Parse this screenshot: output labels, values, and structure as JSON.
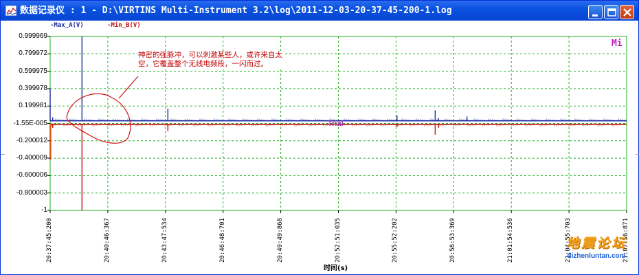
{
  "window": {
    "title": "数据记录仪 : 1 - D:\\VIRTINS Multi-Instrument 3.2\\log\\2011-12-03-20-37-45-200-1.log",
    "buttons": [
      "minimize",
      "maximize",
      "close"
    ]
  },
  "legend": [
    {
      "label": "-Max_A(V)",
      "color": "#1a2aa0"
    },
    {
      "label": "-Min_B(V)",
      "color": "#c81010"
    }
  ],
  "plot": {
    "corner_tag": "Mi",
    "trial_tag": "Trial",
    "annotation": "神密的强脉冲，可以刺激某些人，或许来自太空，它覆盖整个无线电频段，一闪而过。"
  },
  "chart_data": {
    "type": "line",
    "ylim": [
      -1,
      1
    ],
    "y_tick_labels": [
      "0.999969",
      "0.799972",
      "0.599975",
      "0.399978",
      "0.199981",
      "-1.55E-005",
      "-0.200012",
      "-0.400009",
      "-0.600006",
      "-0.800003",
      "-1"
    ],
    "y_ticks": [
      0.999969,
      0.799972,
      0.599975,
      0.399978,
      0.199981,
      -1.55e-05,
      -0.200012,
      -0.400009,
      -0.600006,
      -0.800003,
      -1
    ],
    "x_tick_labels": [
      "20:37:45:200",
      "20:40:46:367",
      "20:43:47:534",
      "20:46:48:701",
      "20:49:49:868",
      "20:52:51:035",
      "20:55:52:202",
      "20:58:53:369",
      "21:01:54:536",
      "21:04:55:703",
      "21:07:56:871"
    ],
    "x_range_s": [
      0,
      1811.671
    ],
    "xlabel": "时间(s)",
    "grid": true,
    "series": [
      {
        "name": "Max_A(V)",
        "color": "#1a2aa0",
        "baseline": 0.03,
        "spikes": [
          [
            0,
            0.4
          ],
          [
            8,
            0.07
          ],
          [
            100,
            1.0
          ],
          [
            370,
            0.17
          ],
          [
            1090,
            0.09
          ],
          [
            1210,
            0.15
          ],
          [
            1220,
            0.06
          ],
          [
            1310,
            0.08
          ]
        ]
      },
      {
        "name": "Min_B(V)",
        "color": "#c81010",
        "baseline": -0.01,
        "spikes": [
          [
            0,
            -0.42
          ],
          [
            8,
            -0.05
          ],
          [
            100,
            -1.0
          ],
          [
            370,
            -0.09
          ],
          [
            1090,
            -0.04
          ],
          [
            1210,
            -0.13
          ],
          [
            1220,
            -0.05
          ]
        ]
      }
    ]
  }
}
